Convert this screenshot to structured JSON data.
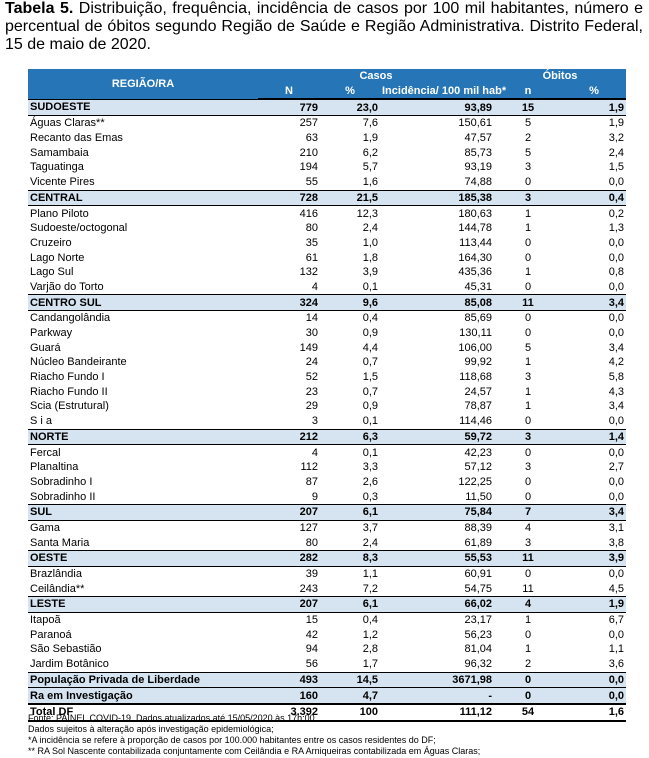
{
  "caption": {
    "label": "Tabela 5.",
    "text": " Distribuição, frequência, incidência de casos por 100 mil habitantes, número e percentual de óbitos segundo Região de Saúde e Região Administrativa. Distrito Federal, 15 de maio de 2020."
  },
  "header": {
    "region": "REGIÃO/RA",
    "casos": "Casos",
    "obitos": "Óbitos",
    "n": "N",
    "pct": "%",
    "incid": "Incidência/ 100 mil hab*",
    "n2": "n",
    "pct2": "%"
  },
  "rows": [
    {
      "type": "grp",
      "name": "SUDOESTE",
      "n": "779",
      "pct": "23,0",
      "inc": "93,89",
      "on": "15",
      "op": "1,9"
    },
    {
      "type": "sub",
      "name": "Águas Claras**",
      "n": "257",
      "pct": "7,6",
      "inc": "150,61",
      "on": "5",
      "op": "1,9"
    },
    {
      "type": "sub",
      "name": "Recanto das Emas",
      "n": "63",
      "pct": "1,9",
      "inc": "47,57",
      "on": "2",
      "op": "3,2"
    },
    {
      "type": "sub",
      "name": "Samambaia",
      "n": "210",
      "pct": "6,2",
      "inc": "85,73",
      "on": "5",
      "op": "2,4"
    },
    {
      "type": "sub",
      "name": "Taguatinga",
      "n": "194",
      "pct": "5,7",
      "inc": "93,19",
      "on": "3",
      "op": "1,5"
    },
    {
      "type": "sub",
      "name": "Vicente Pires",
      "n": "55",
      "pct": "1,6",
      "inc": "74,88",
      "on": "0",
      "op": "0,0"
    },
    {
      "type": "grp",
      "name": "CENTRAL",
      "n": "728",
      "pct": "21,5",
      "inc": "185,38",
      "on": "3",
      "op": "0,4"
    },
    {
      "type": "sub",
      "name": "Plano Piloto",
      "n": "416",
      "pct": "12,3",
      "inc": "180,63",
      "on": "1",
      "op": "0,2"
    },
    {
      "type": "sub",
      "name": "Sudoeste/octogonal",
      "n": "80",
      "pct": "2,4",
      "inc": "144,78",
      "on": "1",
      "op": "1,3"
    },
    {
      "type": "sub",
      "name": "Cruzeiro",
      "n": "35",
      "pct": "1,0",
      "inc": "113,44",
      "on": "0",
      "op": "0,0"
    },
    {
      "type": "sub",
      "name": "Lago Norte",
      "n": "61",
      "pct": "1,8",
      "inc": "164,30",
      "on": "0",
      "op": "0,0"
    },
    {
      "type": "sub",
      "name": "Lago Sul",
      "n": "132",
      "pct": "3,9",
      "inc": "435,36",
      "on": "1",
      "op": "0,8"
    },
    {
      "type": "sub",
      "name": "Varjão do Torto",
      "n": "4",
      "pct": "0,1",
      "inc": "45,31",
      "on": "0",
      "op": "0,0"
    },
    {
      "type": "grp",
      "name": "CENTRO SUL",
      "n": "324",
      "pct": "9,6",
      "inc": "85,08",
      "on": "11",
      "op": "3,4"
    },
    {
      "type": "sub",
      "name": "Candangolândia",
      "n": "14",
      "pct": "0,4",
      "inc": "85,69",
      "on": "0",
      "op": "0,0"
    },
    {
      "type": "sub",
      "name": "Parkway",
      "n": "30",
      "pct": "0,9",
      "inc": "130,11",
      "on": "0",
      "op": "0,0"
    },
    {
      "type": "sub",
      "name": "Guará",
      "n": "149",
      "pct": "4,4",
      "inc": "106,00",
      "on": "5",
      "op": "3,4"
    },
    {
      "type": "sub",
      "name": "Núcleo Bandeirante",
      "n": "24",
      "pct": "0,7",
      "inc": "99,92",
      "on": "1",
      "op": "4,2"
    },
    {
      "type": "sub",
      "name": "Riacho Fundo I",
      "n": "52",
      "pct": "1,5",
      "inc": "118,68",
      "on": "3",
      "op": "5,8"
    },
    {
      "type": "sub",
      "name": "Riacho Fundo II",
      "n": "23",
      "pct": "0,7",
      "inc": "24,57",
      "on": "1",
      "op": "4,3"
    },
    {
      "type": "sub",
      "name": "Scia (Estrutural)",
      "n": "29",
      "pct": "0,9",
      "inc": "78,87",
      "on": "1",
      "op": "3,4"
    },
    {
      "type": "sub",
      "name": "S i a",
      "n": "3",
      "pct": "0,1",
      "inc": "114,46",
      "on": "0",
      "op": "0,0"
    },
    {
      "type": "grp",
      "name": "NORTE",
      "n": "212",
      "pct": "6,3",
      "inc": "59,72",
      "on": "3",
      "op": "1,4"
    },
    {
      "type": "sub",
      "name": "Fercal",
      "n": "4",
      "pct": "0,1",
      "inc": "42,23",
      "on": "0",
      "op": "0,0"
    },
    {
      "type": "sub",
      "name": "Planaltina",
      "n": "112",
      "pct": "3,3",
      "inc": "57,12",
      "on": "3",
      "op": "2,7"
    },
    {
      "type": "sub",
      "name": "Sobradinho I",
      "n": "87",
      "pct": "2,6",
      "inc": "122,25",
      "on": "0",
      "op": "0,0"
    },
    {
      "type": "sub",
      "name": "Sobradinho II",
      "n": "9",
      "pct": "0,3",
      "inc": "11,50",
      "on": "0",
      "op": "0,0"
    },
    {
      "type": "grp",
      "name": "SUL",
      "n": "207",
      "pct": "6,1",
      "inc": "75,84",
      "on": "7",
      "op": "3,4"
    },
    {
      "type": "sub",
      "name": "Gama",
      "n": "127",
      "pct": "3,7",
      "inc": "88,39",
      "on": "4",
      "op": "3,1"
    },
    {
      "type": "sub",
      "name": "Santa Maria",
      "n": "80",
      "pct": "2,4",
      "inc": "61,89",
      "on": "3",
      "op": "3,8"
    },
    {
      "type": "grp",
      "name": "OESTE",
      "n": "282",
      "pct": "8,3",
      "inc": "55,53",
      "on": "11",
      "op": "3,9"
    },
    {
      "type": "sub",
      "name": "Brazlândia",
      "n": "39",
      "pct": "1,1",
      "inc": "60,91",
      "on": "0",
      "op": "0,0"
    },
    {
      "type": "sub",
      "name": "Ceilândia**",
      "n": "243",
      "pct": "7,2",
      "inc": "54,75",
      "on": "11",
      "op": "4,5"
    },
    {
      "type": "grp",
      "name": "LESTE",
      "n": "207",
      "pct": "6,1",
      "inc": "66,02",
      "on": "4",
      "op": "1,9"
    },
    {
      "type": "sub",
      "name": "Itapoã",
      "n": "15",
      "pct": "0,4",
      "inc": "23,17",
      "on": "1",
      "op": "6,7"
    },
    {
      "type": "sub",
      "name": "Paranoá",
      "n": "42",
      "pct": "1,2",
      "inc": "56,23",
      "on": "0",
      "op": "0,0"
    },
    {
      "type": "sub",
      "name": "São Sebastião",
      "n": "94",
      "pct": "2,8",
      "inc": "81,04",
      "on": "1",
      "op": "1,1"
    },
    {
      "type": "sub",
      "name": "Jardim Botânico",
      "n": "56",
      "pct": "1,7",
      "inc": "96,32",
      "on": "2",
      "op": "3,6"
    },
    {
      "type": "grp",
      "name": "População Privada de Liberdade",
      "n": "493",
      "pct": "14,5",
      "inc": "3671,98",
      "on": "0",
      "op": "0,0"
    },
    {
      "type": "grp",
      "name": "Ra em Investigação",
      "n": "160",
      "pct": "4,7",
      "inc": "-",
      "on": "0",
      "op": "0,0"
    },
    {
      "type": "total",
      "name": "Total DF",
      "n": "3.392",
      "pct": "100",
      "inc": "111,12",
      "on": "54",
      "op": "1,6"
    }
  ],
  "footnotes": [
    "Fonte: PAINEL COVID-19. Dados atualizados até 15/05/2020 às 17h:00",
    "Dados sujeitos à alteração após investigação epidemiológica;",
    "*A incidência se refere à proporção de casos por 100.000 habitantes entre os casos residentes do DF;",
    "** RA Sol Nascente contabilizada conjuntamente com Ceilândia e  RA Arniqueiras contabilizada em Águas Claras;"
  ]
}
